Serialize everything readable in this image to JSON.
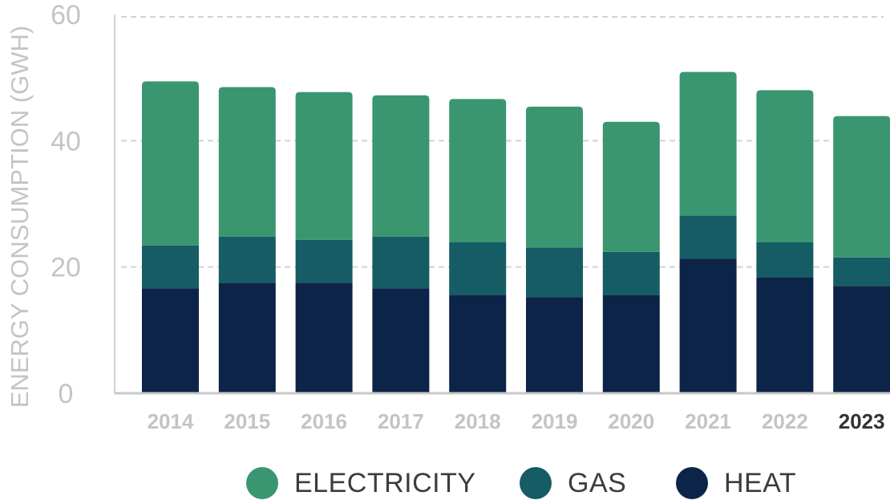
{
  "chart_data": {
    "type": "bar",
    "stacked": true,
    "title": "",
    "xlabel": "",
    "ylabel": "ENERGY CONSUMPTION (GWH)",
    "ylim": [
      0,
      60
    ],
    "yticks": [
      "0",
      "20",
      "40",
      "60"
    ],
    "grid": true,
    "legend_position": "bottom",
    "highlight_category": "2023",
    "categories": [
      "2014",
      "2015",
      "2016",
      "2017",
      "2018",
      "2019",
      "2020",
      "2021",
      "2022",
      "2023"
    ],
    "series": [
      {
        "name": "HEAT",
        "color": "#0c2447",
        "values": [
          16.6,
          17.5,
          17.5,
          16.6,
          15.6,
          15.2,
          15.6,
          21.3,
          18.4,
          17.0
        ]
      },
      {
        "name": "GAS",
        "color": "#155c65",
        "values": [
          6.8,
          7.3,
          6.8,
          8.2,
          8.3,
          7.9,
          6.8,
          6.8,
          5.5,
          4.5
        ]
      },
      {
        "name": "ELECTRICITY",
        "color": "#3a9670",
        "values": [
          26.0,
          23.7,
          23.4,
          22.4,
          22.7,
          22.3,
          20.6,
          22.8,
          24.1,
          22.4
        ]
      }
    ]
  },
  "legend": [
    {
      "name": "ELECTRICITY",
      "color": "#3a9670"
    },
    {
      "name": "GAS",
      "color": "#155c65"
    },
    {
      "name": "HEAT",
      "color": "#0c2447"
    }
  ]
}
